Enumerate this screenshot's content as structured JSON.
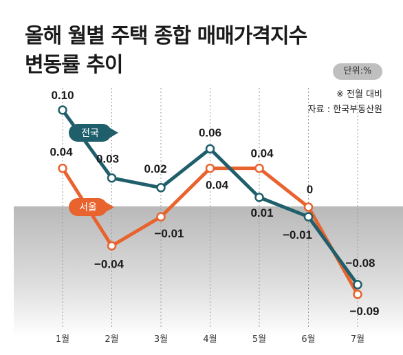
{
  "title_line1": "올해 월별 주택 종합 매매가격지수",
  "title_line2": "변동률 추이",
  "unit": "단위:%",
  "note": "※ 전월 대비",
  "source": "자료 : 한국부동산원",
  "colors": {
    "national": "#1f5f6b",
    "seoul": "#e8632e",
    "negative_band": "#c9c9c9"
  },
  "chart_data": {
    "type": "line",
    "categories": [
      "1월",
      "2월",
      "3월",
      "4월",
      "5월",
      "6월",
      "7월"
    ],
    "series": [
      {
        "name": "전국",
        "values": [
          0.1,
          0.03,
          0.02,
          0.06,
          0.01,
          -0.01,
          -0.08
        ],
        "labels": [
          "0.10",
          "0.03",
          "0.02",
          "0.06",
          "0.01",
          "−0.01",
          "−0.08"
        ]
      },
      {
        "name": "서울",
        "values": [
          0.04,
          -0.04,
          -0.01,
          0.04,
          0.04,
          0,
          -0.09
        ],
        "labels": [
          "0.04",
          "−0.04",
          "−0.01",
          "0.04",
          "0.04",
          "0",
          "−0.09"
        ]
      }
    ],
    "title": "올해 월별 주택 종합 매매가격지수 변동률 추이",
    "ylim": [
      -0.1,
      0.11
    ],
    "grid": false,
    "legend": "inline tags"
  }
}
